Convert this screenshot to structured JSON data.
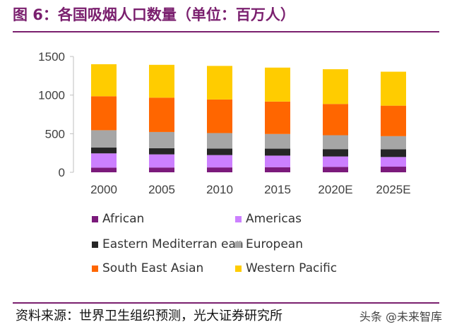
{
  "figure": {
    "title": "图 6：各国吸烟人口数量（单位：百万人）",
    "source": "资料来源：世界卫生组织预测，光大证券研究所",
    "watermark": "头条 @未来智库"
  },
  "colors": {
    "African": "#7b1a7b",
    "Americas": "#cc80ff",
    "Eastern Mediterranean": "#262626",
    "European": "#a6a6a6",
    "South East Asian": "#ff6600",
    "Western Pacific": "#ffcc00",
    "title": "#7a1f6e"
  },
  "legend": [
    {
      "label": "African"
    },
    {
      "label": "Americas"
    },
    {
      "label": "Eastern Mediterran ean"
    },
    {
      "label": "European"
    },
    {
      "label": "South East Asian"
    },
    {
      "label": "Western Pacific"
    }
  ],
  "chart_data": {
    "type": "bar",
    "stacked": true,
    "title": "各国吸烟人口数量（单位：百万人）",
    "xlabel": "",
    "ylabel": "",
    "ylim": [
      0,
      1500
    ],
    "yticks": [
      0,
      500,
      1000,
      1500
    ],
    "grid": false,
    "legend_position": "bottom",
    "categories": [
      "2000",
      "2005",
      "2010",
      "2015",
      "2020E",
      "2025E"
    ],
    "series": [
      {
        "name": "African",
        "values": [
          60,
          62,
          63,
          66,
          70,
          73
        ]
      },
      {
        "name": "Americas",
        "values": [
          185,
          170,
          160,
          150,
          135,
          125
        ]
      },
      {
        "name": "Eastern Mediterranean",
        "values": [
          75,
          80,
          85,
          90,
          95,
          100
        ]
      },
      {
        "name": "European",
        "values": [
          225,
          210,
          200,
          190,
          180,
          170
        ]
      },
      {
        "name": "South East Asian",
        "values": [
          440,
          445,
          435,
          420,
          405,
          395
        ]
      },
      {
        "name": "Western Pacific",
        "values": [
          415,
          425,
          435,
          440,
          450,
          440
        ]
      }
    ]
  }
}
